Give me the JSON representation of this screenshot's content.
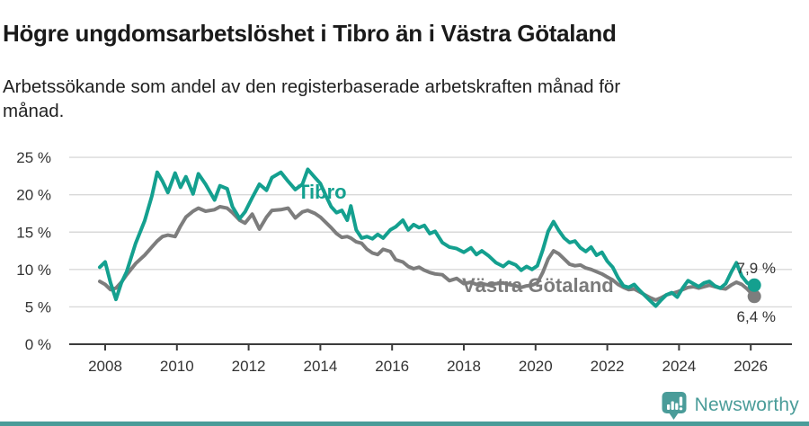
{
  "header": {
    "title": "Högre ungdomsarbetslöshet i Tibro än i Västra Götaland",
    "subtitle": "Arbetssökande som andel av den registerbaserade arbetskraften månad för\nmånad."
  },
  "colors": {
    "tibro": "#14a08f",
    "vastra": "#7d7d7d",
    "grid": "#d9d9d9",
    "axis": "#3c3c3c",
    "tick_text": "#333333",
    "annotation_text": "#333333",
    "brand": "#4a9c99",
    "title_text": "#1a1a1a"
  },
  "chart_data": {
    "type": "line",
    "title": "Högre ungdomsarbetslöshet i Tibro än i Västra Götaland",
    "subtitle": "Arbetssökande som andel av den registerbaserade arbetskraften månad för månad.",
    "grid": "horizontal",
    "legend_position": "inline-labels",
    "xlim": [
      2007.0,
      2027.1
    ],
    "ylim": [
      0,
      26.5
    ],
    "x_ticks": [
      2008,
      2010,
      2012,
      2014,
      2016,
      2018,
      2020,
      2022,
      2024,
      2026
    ],
    "y_ticks": [
      0,
      5,
      10,
      15,
      20,
      25
    ],
    "y_tick_suffix": " %",
    "x": [
      2007.85,
      2008.0,
      2008.15,
      2008.3,
      2008.45,
      2008.6,
      2008.85,
      2009.1,
      2009.3,
      2009.45,
      2009.6,
      2009.75,
      2009.95,
      2010.1,
      2010.25,
      2010.45,
      2010.6,
      2010.8,
      2011.05,
      2011.2,
      2011.4,
      2011.55,
      2011.75,
      2011.9,
      2012.1,
      2012.3,
      2012.5,
      2012.65,
      2012.9,
      2013.1,
      2013.3,
      2013.5,
      2013.65,
      2013.85,
      2014.0,
      2014.15,
      2014.3,
      2014.45,
      2014.6,
      2014.75,
      2014.85,
      2015.0,
      2015.15,
      2015.3,
      2015.45,
      2015.6,
      2015.75,
      2015.95,
      2016.1,
      2016.3,
      2016.45,
      2016.6,
      2016.75,
      2016.9,
      2017.05,
      2017.2,
      2017.4,
      2017.6,
      2017.8,
      2018.0,
      2018.2,
      2018.35,
      2018.5,
      2018.7,
      2018.9,
      2019.1,
      2019.25,
      2019.45,
      2019.6,
      2019.75,
      2019.9,
      2020.05,
      2020.2,
      2020.35,
      2020.5,
      2020.65,
      2020.8,
      2020.95,
      2021.1,
      2021.25,
      2021.4,
      2021.55,
      2021.7,
      2021.85,
      2022.0,
      2022.15,
      2022.3,
      2022.45,
      2022.6,
      2022.75,
      2022.9,
      2023.05,
      2023.2,
      2023.35,
      2023.5,
      2023.65,
      2023.8,
      2023.95,
      2024.1,
      2024.25,
      2024.4,
      2024.55,
      2024.7,
      2024.85,
      2025.0,
      2025.15,
      2025.3,
      2025.45,
      2025.6,
      2025.75,
      2025.9,
      2026.1
    ],
    "series": [
      {
        "name": "Tibro",
        "color": "#14a08f",
        "end_value_label": "7,9 %",
        "values": [
          10.3,
          11.0,
          8.2,
          6.0,
          8.2,
          9.7,
          13.5,
          16.5,
          19.8,
          23.0,
          21.8,
          20.3,
          22.9,
          21.0,
          22.4,
          20.1,
          22.8,
          21.4,
          19.3,
          21.2,
          20.8,
          18.4,
          16.8,
          17.7,
          19.6,
          21.4,
          20.6,
          22.3,
          23.0,
          21.8,
          20.7,
          21.4,
          23.4,
          22.3,
          21.5,
          19.9,
          18.4,
          17.6,
          17.9,
          16.6,
          18.5,
          15.3,
          14.2,
          14.4,
          14.1,
          14.7,
          14.2,
          15.3,
          15.7,
          16.6,
          15.3,
          16.0,
          15.6,
          15.9,
          14.8,
          15.1,
          13.6,
          13.0,
          12.8,
          12.3,
          12.9,
          12.0,
          12.5,
          11.8,
          10.9,
          10.4,
          11.0,
          10.6,
          9.9,
          10.4,
          10.0,
          10.5,
          12.6,
          15.1,
          16.4,
          15.2,
          14.2,
          13.6,
          13.8,
          12.9,
          12.4,
          13.0,
          11.9,
          12.3,
          11.1,
          10.3,
          8.9,
          7.8,
          7.6,
          8.0,
          7.2,
          6.5,
          5.8,
          5.1,
          5.9,
          6.6,
          6.9,
          6.3,
          7.5,
          8.5,
          8.1,
          7.7,
          8.2,
          8.4,
          7.8,
          7.5,
          8.1,
          9.6,
          10.9,
          9.1,
          8.2,
          7.9
        ]
      },
      {
        "name": "Västra Götaland",
        "color": "#7d7d7d",
        "end_value_label": "6,4 %",
        "values": [
          8.4,
          8.0,
          7.3,
          7.5,
          8.3,
          9.3,
          10.8,
          11.9,
          13.0,
          13.8,
          14.4,
          14.6,
          14.4,
          15.8,
          17.0,
          17.8,
          18.2,
          17.8,
          18.0,
          18.4,
          18.2,
          17.6,
          16.6,
          16.2,
          17.4,
          15.4,
          17.0,
          17.9,
          18.0,
          18.2,
          16.9,
          17.7,
          17.9,
          17.5,
          17.0,
          16.3,
          15.6,
          14.8,
          14.3,
          14.4,
          14.2,
          13.7,
          13.5,
          12.7,
          12.2,
          12.0,
          12.7,
          12.4,
          11.3,
          11.0,
          10.4,
          10.1,
          10.3,
          9.9,
          9.6,
          9.4,
          9.3,
          8.5,
          8.8,
          8.1,
          8.3,
          8.0,
          8.1,
          7.9,
          8.1,
          8.2,
          8.0,
          7.8,
          7.6,
          7.8,
          7.9,
          8.2,
          9.6,
          11.4,
          12.5,
          12.1,
          11.4,
          10.7,
          10.5,
          10.6,
          10.2,
          10.0,
          9.7,
          9.4,
          9.0,
          8.6,
          8.0,
          7.6,
          7.3,
          7.4,
          7.0,
          6.6,
          6.2,
          5.9,
          6.2,
          6.6,
          6.8,
          7.0,
          7.3,
          7.6,
          7.7,
          7.5,
          7.7,
          7.9,
          7.7,
          7.5,
          7.4,
          7.9,
          8.3,
          8.0,
          7.4,
          6.4
        ]
      }
    ]
  },
  "footer": {
    "brand": "Newsworthy"
  }
}
